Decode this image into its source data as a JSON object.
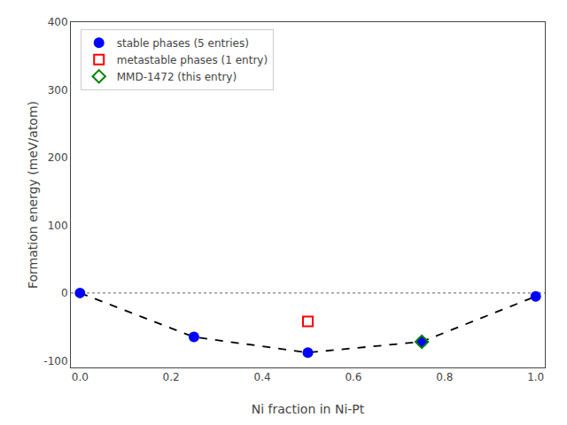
{
  "chart_data": {
    "type": "scatter",
    "xlabel": "Ni fraction in Ni-Pt",
    "ylabel": "Formation energy (meV/atom)",
    "xlim": [
      -0.02,
      1.02
    ],
    "ylim": [
      -110,
      400
    ],
    "xticks": [
      {
        "value": 0,
        "label": "0.0"
      },
      0.2,
      0.4,
      0.6,
      0.8,
      {
        "value": 1,
        "label": "1.0"
      }
    ],
    "yticks": [
      -100,
      0,
      100,
      200,
      300,
      400
    ],
    "grid": false,
    "legend": "upper left",
    "series": [
      {
        "type": "hline",
        "values": [
          0.0
        ],
        "color": "gray",
        "line_style": "dotted"
      },
      {
        "type": "line",
        "x": [
          0.0,
          0.25,
          0.5,
          0.75,
          1.0
        ],
        "values": [
          0.0,
          -65.0,
          -88.0,
          -72.0,
          -5.0
        ],
        "color": "black",
        "line_style": "dashed"
      },
      {
        "type": "scatter",
        "name": "stable phases (5 entries)",
        "x": [
          0.0,
          0.25,
          0.5,
          0.75,
          1.0
        ],
        "values": [
          0.0,
          -65.0,
          -88.0,
          -72.0,
          -5.0
        ],
        "color": "blue",
        "marker": "circle"
      },
      {
        "type": "scatter",
        "name": "metastable phases (1 entry)",
        "x": [
          0.5
        ],
        "values": [
          -42.0
        ],
        "color": "red",
        "marker": "square-open"
      },
      {
        "type": "scatter",
        "name": "MMD-1472 (this entry)",
        "x": [
          0.75
        ],
        "values": [
          -72.0
        ],
        "color": "green",
        "marker": "diamond-open"
      }
    ]
  }
}
